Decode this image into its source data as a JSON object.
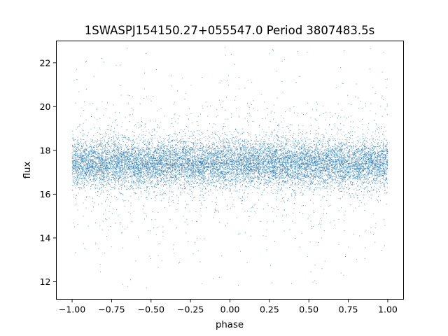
{
  "chart_data": {
    "type": "scatter",
    "title": "1SWASPJ154150.27+055547.0 Period 3807483.5s",
    "xlabel": "phase",
    "ylabel": "flux",
    "xlim": [
      -1.1,
      1.1
    ],
    "ylim": [
      11.2,
      23.0
    ],
    "x_ticks": [
      {
        "value": -1.0,
        "label": "−1.00"
      },
      {
        "value": -0.75,
        "label": "−0.75"
      },
      {
        "value": -0.5,
        "label": "−0.50"
      },
      {
        "value": -0.25,
        "label": "−0.25"
      },
      {
        "value": 0.0,
        "label": "0.00"
      },
      {
        "value": 0.25,
        "label": "0.25"
      },
      {
        "value": 0.5,
        "label": "0.50"
      },
      {
        "value": 0.75,
        "label": "0.75"
      },
      {
        "value": 1.0,
        "label": "1.00"
      }
    ],
    "y_ticks": [
      {
        "value": 12,
        "label": "12"
      },
      {
        "value": 14,
        "label": "14"
      },
      {
        "value": 16,
        "label": "16"
      },
      {
        "value": 18,
        "label": "18"
      },
      {
        "value": 20,
        "label": "20"
      },
      {
        "value": 22,
        "label": "22"
      }
    ],
    "grid": false,
    "marker_color": "#1f77b4",
    "series": [
      {
        "x_range": [
          -1.0,
          1.0
        ],
        "core_band": [
          16.2,
          18.6
        ],
        "scatter_range": [
          11.7,
          22.7
        ],
        "dip_phases": [
          -0.45,
          0.55
        ],
        "dip_min": 11.7,
        "high_phases": [
          -0.95,
          0.0,
          0.95
        ],
        "high_max": 22.7
      }
    ]
  }
}
